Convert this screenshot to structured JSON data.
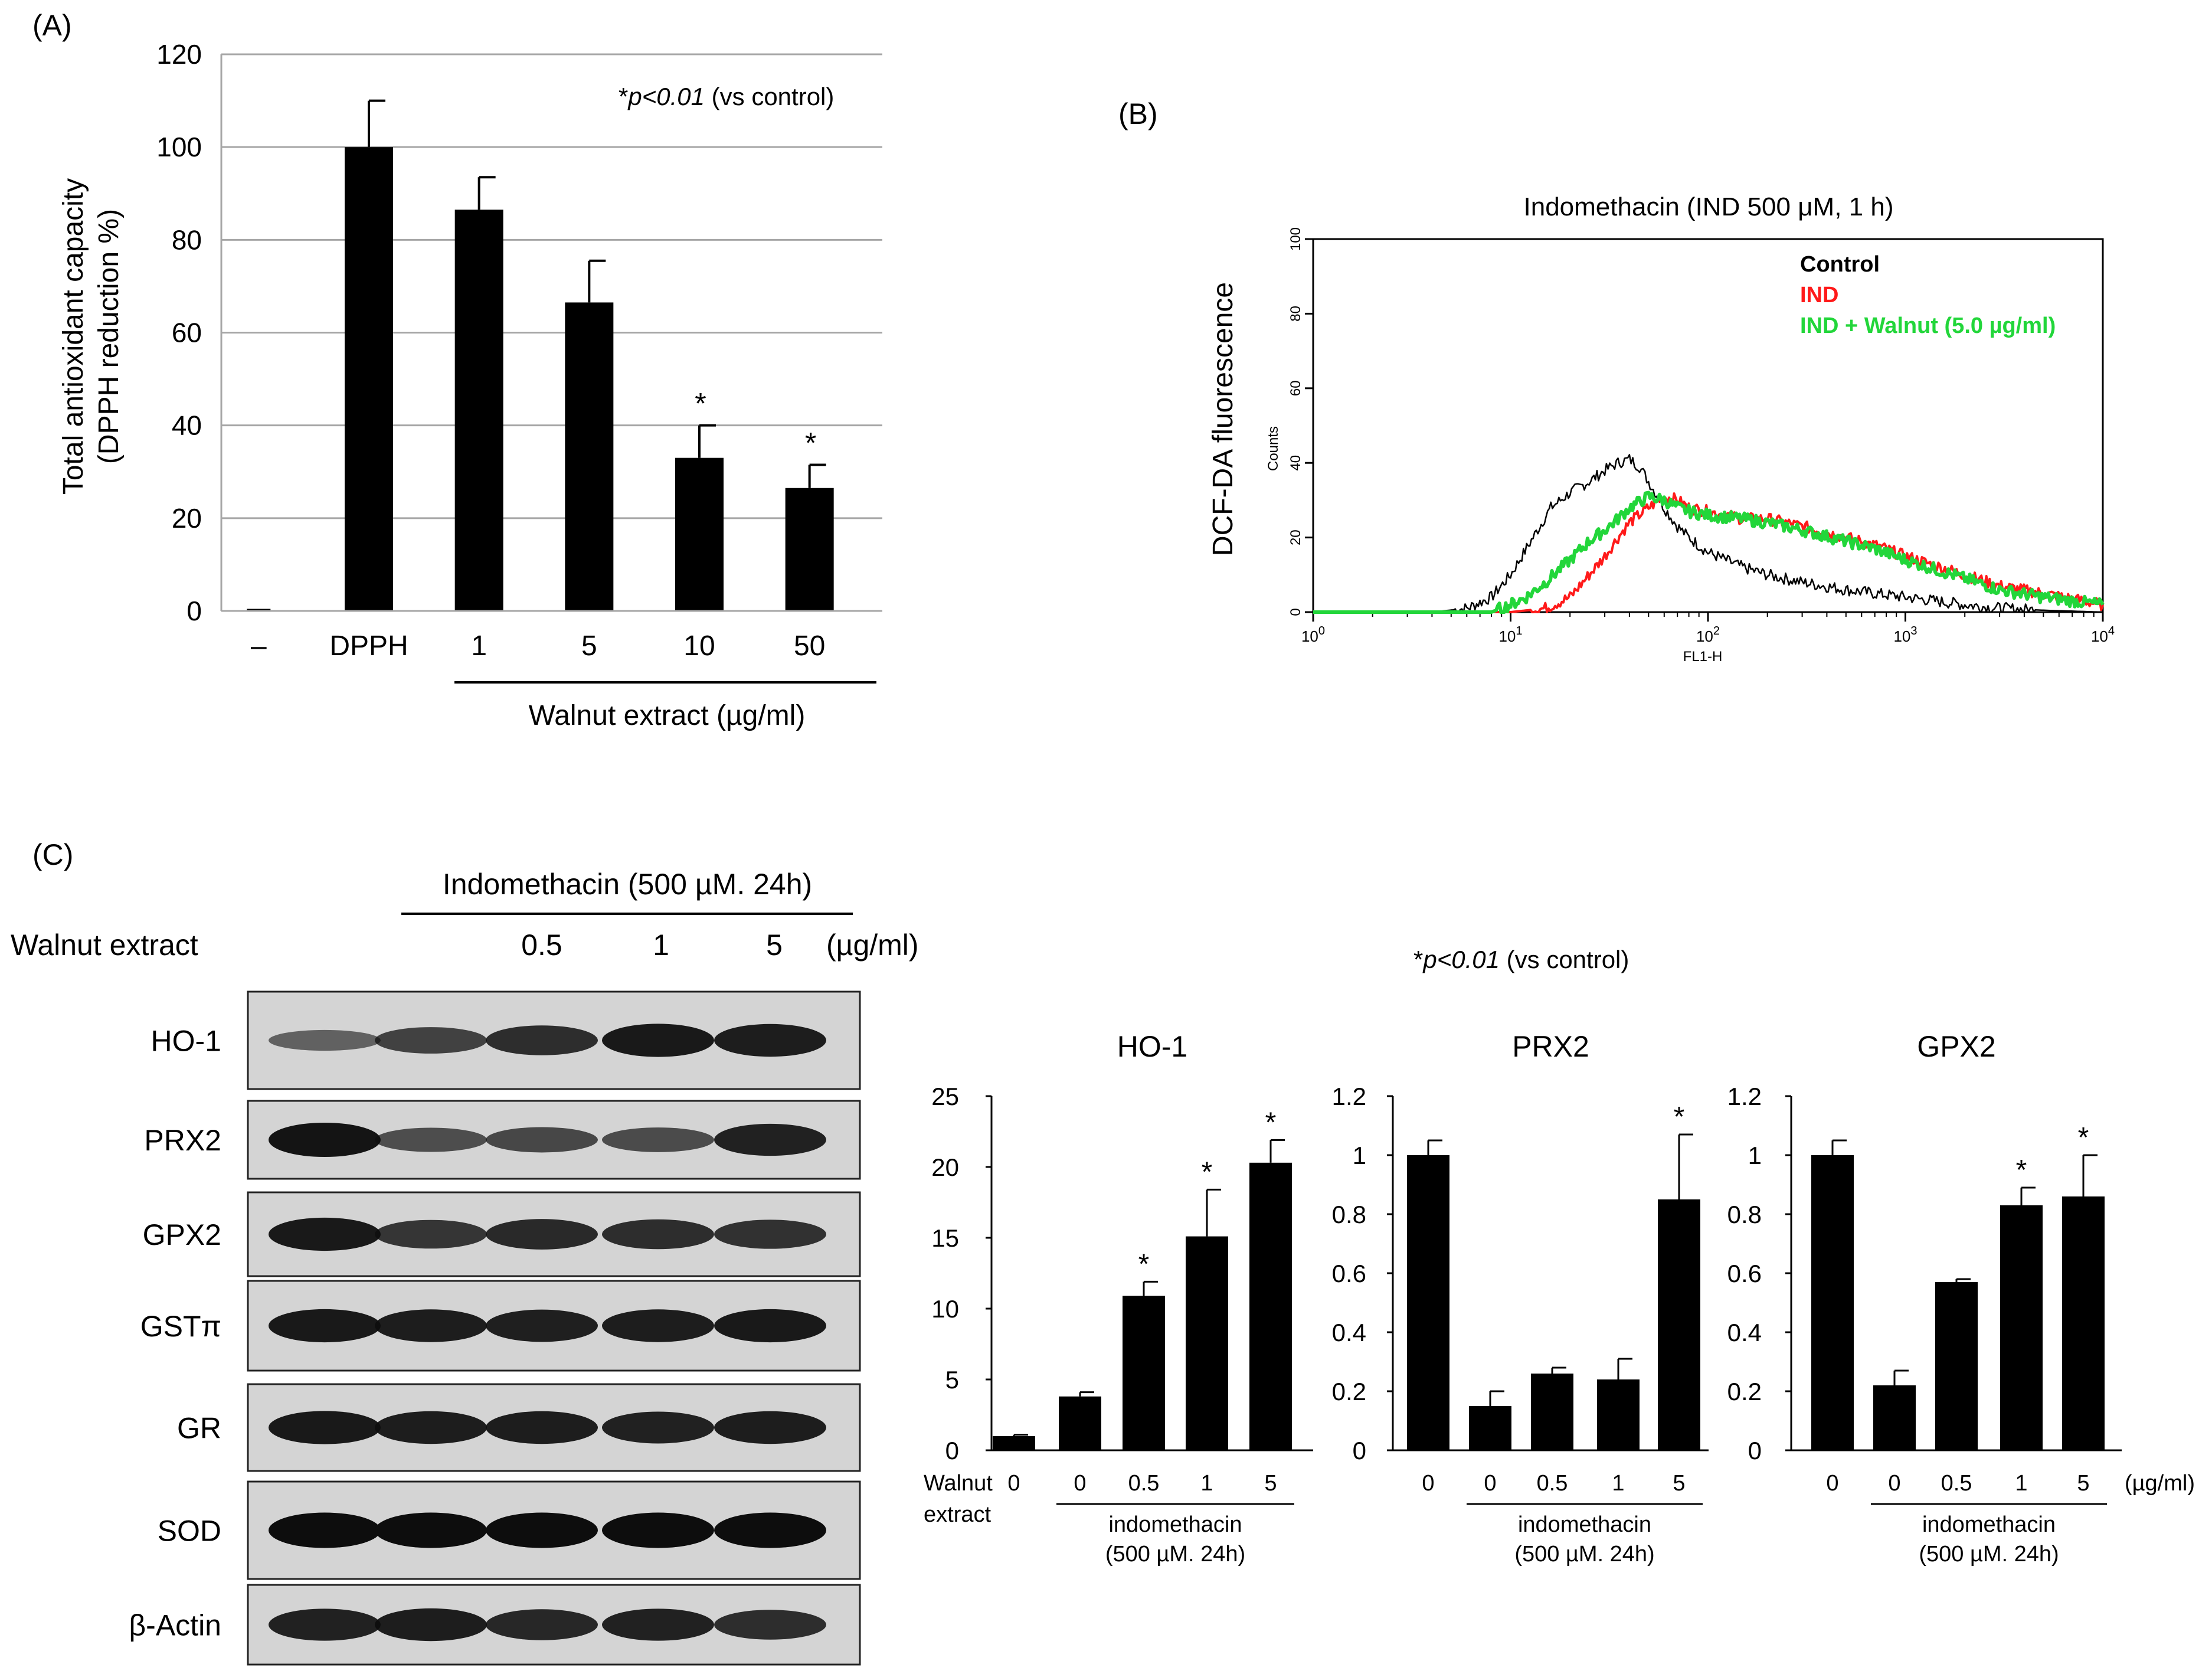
{
  "colors": {
    "bar": "#000000",
    "grid": "#a6a6a6",
    "control_line": "#000000",
    "ind_line": "#ff1a1a",
    "walnut_line": "#22d63a",
    "blot_bg": "#d4d4d4",
    "blot_band": "#0d0d0d"
  },
  "panel_a": {
    "label": "(A)",
    "sig_star": "*",
    "sig_text": "p<0.01",
    "sig_suffix": "(vs control)",
    "bracket_label": "Walnut extract (µg/ml)"
  },
  "panel_b": {
    "label": "(B)",
    "title": "Indomethacin (IND 500 μM, 1 h)",
    "ylabel": "DCF-DA fluorescence",
    "counts_label": "Counts",
    "xlabel": "FL1-H",
    "legend": [
      "Control",
      "IND",
      "IND + Walnut (5.0 µg/ml)"
    ],
    "yticks": [
      "0",
      "20",
      "40",
      "60",
      "80",
      "100"
    ],
    "xticks": [
      {
        "base": "10",
        "exp": "0"
      },
      {
        "base": "10",
        "exp": "1"
      },
      {
        "base": "10",
        "exp": "2"
      },
      {
        "base": "10",
        "exp": "3"
      },
      {
        "base": "10",
        "exp": "4"
      }
    ]
  },
  "panel_c": {
    "label": "(C)",
    "treatment_title": "Indomethacin (500 µM. 24h)",
    "walnut_label": "Walnut extract",
    "dose_labels": [
      "0.5",
      "1",
      "5"
    ],
    "dose_unit": "(µg/ml)",
    "sig_star": "*",
    "sig_text": "p<0.01",
    "sig_suffix": "(vs control)",
    "blot_rows": [
      {
        "label": "HO-1",
        "intensity": [
          0.35,
          0.6,
          0.75,
          0.9,
          0.88
        ]
      },
      {
        "label": "PRX2",
        "intensity": [
          0.95,
          0.5,
          0.55,
          0.52,
          0.85
        ]
      },
      {
        "label": "GPX2",
        "intensity": [
          0.9,
          0.7,
          0.78,
          0.75,
          0.72
        ]
      },
      {
        "label": "GSTπ",
        "intensity": [
          0.9,
          0.88,
          0.86,
          0.88,
          0.9
        ]
      },
      {
        "label": "GR",
        "intensity": [
          0.9,
          0.88,
          0.88,
          0.84,
          0.88
        ]
      },
      {
        "label": "SOD",
        "intensity": [
          1.0,
          1.0,
          1.0,
          1.0,
          1.0
        ]
      },
      {
        "label": "β-Actin",
        "intensity": [
          0.85,
          0.88,
          0.8,
          0.85,
          0.75
        ]
      }
    ],
    "walnut_x_label": [
      "Walnut",
      "extract"
    ],
    "group_label": [
      "indomethacin",
      "(500 µM. 24h)"
    ],
    "unit_label": "(µg/ml)"
  },
  "chart_data": [
    {
      "type": "bar",
      "panel": "A",
      "title": "",
      "ylabel": "Total antioxidant capacity (DPPH reduction %)",
      "xlabel": "Walnut extract (µg/ml)",
      "categories": [
        "–",
        "DPPH",
        "1",
        "5",
        "10",
        "50"
      ],
      "values": [
        0,
        100,
        86.5,
        66.5,
        33,
        26.5
      ],
      "errors": [
        0,
        10,
        7,
        9,
        7,
        5
      ],
      "significant": [
        false,
        false,
        false,
        false,
        true,
        true
      ],
      "ylim": [
        0,
        120
      ],
      "yticks": [
        0,
        20,
        40,
        60,
        80,
        100,
        120
      ],
      "grid": true
    },
    {
      "type": "line",
      "panel": "B",
      "title": "Indomethacin (IND 500 μM, 1 h)",
      "xscale": "log",
      "xlim": [
        1,
        10000
      ],
      "ylim": [
        0,
        100
      ],
      "xlabel": "FL1-H",
      "ylabel": "Counts",
      "series": [
        {
          "name": "Control",
          "x": [
            1,
            4,
            6,
            8,
            10,
            13,
            16,
            20,
            25,
            30,
            35,
            40,
            45,
            50,
            60,
            70,
            80,
            100,
            150,
            200,
            300,
            500,
            700,
            1000,
            2000,
            3000,
            5000,
            10000
          ],
          "y": [
            0,
            0,
            1,
            4,
            10,
            20,
            28,
            32,
            35,
            38,
            40,
            41,
            39,
            35,
            28,
            23,
            20,
            16,
            12,
            10,
            8,
            6,
            5,
            4,
            2,
            1,
            0.5,
            0
          ]
        },
        {
          "name": "IND",
          "x": [
            1,
            10,
            15,
            20,
            25,
            30,
            35,
            40,
            50,
            60,
            70,
            80,
            100,
            150,
            200,
            300,
            500,
            700,
            1000,
            2000,
            3000,
            5000,
            10000
          ],
          "y": [
            0,
            0,
            1,
            4,
            10,
            15,
            20,
            24,
            28,
            31,
            30,
            28,
            27,
            25,
            25,
            23,
            20,
            18,
            15,
            10,
            7,
            5,
            2
          ]
        },
        {
          "name": "IND + Walnut (5.0 µg/ml)",
          "x": [
            1,
            8,
            10,
            12,
            15,
            20,
            25,
            30,
            35,
            40,
            50,
            60,
            70,
            80,
            100,
            150,
            200,
            300,
            500,
            700,
            1000,
            2000,
            3000,
            5000,
            10000
          ],
          "y": [
            0,
            0,
            2,
            4,
            8,
            14,
            19,
            22,
            25,
            28,
            31,
            30,
            28,
            27,
            26,
            25,
            24,
            22,
            19,
            17,
            14,
            9,
            6,
            4,
            2
          ]
        }
      ]
    },
    {
      "type": "bar",
      "panel": "C-HO-1",
      "title": "HO-1",
      "categories": [
        "0",
        "0",
        "0.5",
        "1",
        "5"
      ],
      "values": [
        1,
        3.8,
        10.9,
        15.1,
        20.3
      ],
      "errors": [
        0.1,
        0.3,
        1.0,
        3.3,
        1.6
      ],
      "significant": [
        false,
        false,
        true,
        true,
        true
      ],
      "ylim": [
        0,
        25
      ],
      "yticks": [
        "0",
        "5",
        "10",
        "15",
        "20",
        "25"
      ]
    },
    {
      "type": "bar",
      "panel": "C-PRX2",
      "title": "PRX2",
      "categories": [
        "0",
        "0",
        "0.5",
        "1",
        "5"
      ],
      "values": [
        1,
        0.15,
        0.26,
        0.24,
        0.85
      ],
      "errors": [
        0.05,
        0.05,
        0.02,
        0.07,
        0.22
      ],
      "significant": [
        false,
        false,
        false,
        false,
        true
      ],
      "ylim": [
        0,
        1.2
      ],
      "yticks": [
        "0",
        "0.2",
        "0.4",
        "0.6",
        "0.8",
        "1",
        "1.2"
      ]
    },
    {
      "type": "bar",
      "panel": "C-GPX2",
      "title": "GPX2",
      "categories": [
        "0",
        "0",
        "0.5",
        "1",
        "5"
      ],
      "values": [
        1,
        0.22,
        0.57,
        0.83,
        0.86
      ],
      "errors": [
        0.05,
        0.05,
        0.01,
        0.06,
        0.14
      ],
      "significant": [
        false,
        false,
        false,
        true,
        true
      ],
      "ylim": [
        0,
        1.2
      ],
      "yticks": [
        "0",
        "0.2",
        "0.4",
        "0.6",
        "0.8",
        "1",
        "1.2"
      ]
    }
  ]
}
